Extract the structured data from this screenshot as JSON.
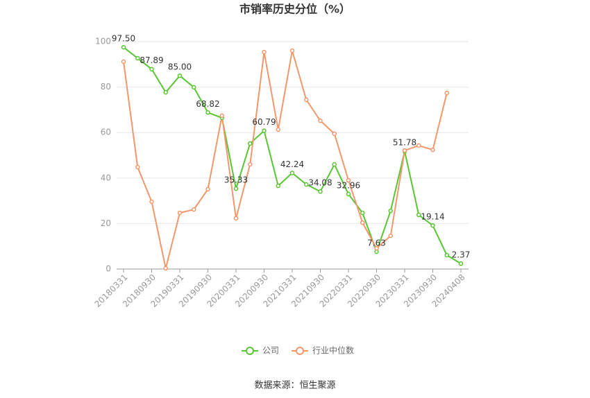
{
  "chart_data": {
    "type": "line",
    "title": "市销率历史分位（%）",
    "source": "数据来源：恒生聚源",
    "categories": [
      "20180331",
      null,
      "20180930",
      null,
      "20190331",
      null,
      "20190930",
      null,
      "20200331",
      null,
      "20200930",
      null,
      "20210331",
      null,
      "20210930",
      null,
      "20220331",
      null,
      "20220930",
      null,
      "20230331",
      null,
      "20230930",
      null,
      "20240408"
    ],
    "series": [
      {
        "name": "公司",
        "color": "#5ac534",
        "values": [
          97.5,
          92.7,
          87.89,
          77.7,
          85.0,
          79.9,
          68.82,
          66.5,
          35.33,
          55.2,
          60.79,
          36.6,
          42.24,
          37.2,
          34.08,
          46.0,
          32.96,
          24.7,
          7.63,
          25.6,
          51.78,
          23.8,
          19.14,
          6.1,
          2.37
        ],
        "value_labels": [
          "97.50",
          null,
          "87.89",
          null,
          "85.00",
          null,
          "68.82",
          null,
          "35.33",
          null,
          "60.79",
          null,
          "42.24",
          null,
          "34.08",
          null,
          "32.96",
          null,
          "7.63",
          null,
          "51.78",
          null,
          "19.14",
          null,
          "2.37"
        ]
      },
      {
        "name": "行业中位数",
        "color": "#f3976b",
        "values": [
          91.2,
          44.8,
          29.6,
          0.3,
          24.7,
          26.2,
          35.1,
          67.4,
          22.3,
          46.0,
          95.4,
          61.3,
          96.0,
          74.4,
          65.2,
          59.5,
          39.0,
          20.4,
          9.1,
          14.6,
          52.1,
          54.3,
          52.4,
          77.4,
          null
        ]
      }
    ],
    "ylim": [
      0,
      100
    ],
    "yticks": [
      0,
      20,
      40,
      60,
      80,
      100
    ],
    "grid": true
  }
}
